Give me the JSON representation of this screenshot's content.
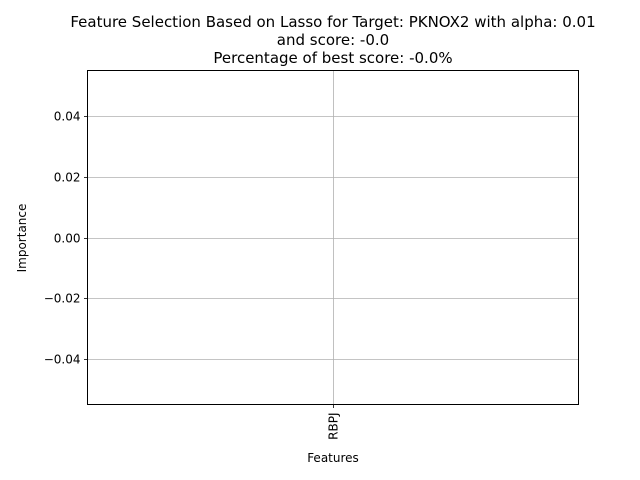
{
  "chart_data": {
    "type": "bar",
    "title_lines": [
      "Feature Selection Based on Lasso for Target: PKNOX2 with alpha: 0.01",
      "and score: -0.0",
      "Percentage of best score: -0.0%"
    ],
    "xlabel": "Features",
    "ylabel": "Importance",
    "categories": [
      "RBPJ"
    ],
    "values": [
      0.0
    ],
    "ylim": [
      -0.055,
      0.055
    ],
    "yticks": [
      -0.04,
      -0.02,
      0.0,
      0.02,
      0.04
    ],
    "ytick_labels": [
      "−0.04",
      "−0.02",
      "0.00",
      "0.02",
      "0.04"
    ],
    "xtick_rotation": "vertical",
    "grid": true,
    "colors": {
      "grid": "#b0b0b0",
      "axes": "#000000",
      "bar": "#1f77b4"
    }
  }
}
